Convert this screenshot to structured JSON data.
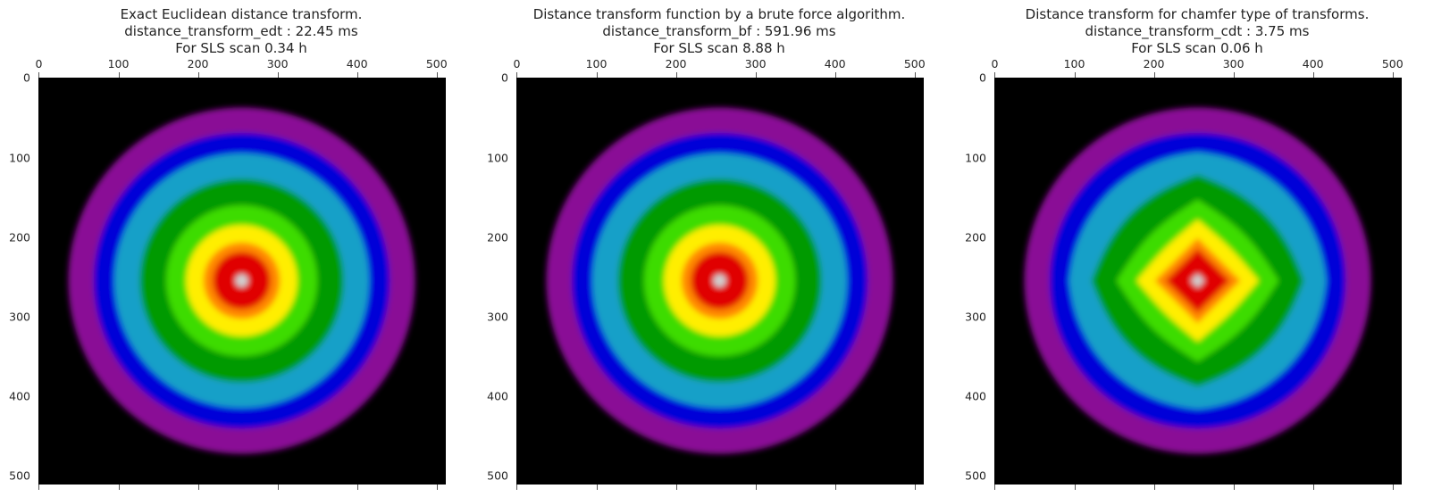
{
  "chart_data": [
    {
      "type": "heatmap",
      "title_lines": [
        "Exact Euclidean distance transform.",
        "distance_transform_edt : 22.45 ms",
        "For SLS scan 0.34 h"
      ],
      "metric": "euclidean",
      "x_ticks": [
        0,
        100,
        200,
        300,
        400,
        500
      ],
      "y_ticks": [
        0,
        100,
        200,
        300,
        400,
        500
      ],
      "xlim": [
        0,
        511
      ],
      "ylim": [
        511,
        0
      ],
      "image_size": [
        512,
        512
      ],
      "center": [
        255,
        255
      ],
      "x_axis_position": "top",
      "grid": false
    },
    {
      "type": "heatmap",
      "title_lines": [
        "Distance transform function by a brute force algorithm.",
        "distance_transform_bf : 591.96 ms",
        "For SLS scan 8.88 h"
      ],
      "metric": "euclidean",
      "x_ticks": [
        0,
        100,
        200,
        300,
        400,
        500
      ],
      "y_ticks": [
        0,
        100,
        200,
        300,
        400,
        500
      ],
      "xlim": [
        0,
        511
      ],
      "ylim": [
        511,
        0
      ],
      "image_size": [
        512,
        512
      ],
      "center": [
        255,
        255
      ],
      "x_axis_position": "top",
      "grid": false
    },
    {
      "type": "heatmap",
      "title_lines": [
        "Distance transform for chamfer type of transforms.",
        "distance_transform_cdt : 3.75 ms",
        "For SLS scan 0.06 h"
      ],
      "metric": "chamfer",
      "x_ticks": [
        0,
        100,
        200,
        300,
        400,
        500
      ],
      "y_ticks": [
        0,
        100,
        200,
        300,
        400,
        500
      ],
      "xlim": [
        0,
        511
      ],
      "ylim": [
        511,
        0
      ],
      "image_size": [
        512,
        512
      ],
      "center": [
        255,
        255
      ],
      "x_axis_position": "top",
      "grid": false
    }
  ],
  "colors": {
    "background": "#000000",
    "violet": "#8a0a96",
    "blue": "#0000d8",
    "cyan": "#12a0c8",
    "green": "#009a00",
    "lime": "#3cdc00",
    "yellow": "#ffee00",
    "orange": "#ff8800",
    "red": "#e00000",
    "center": "#d0d0d0"
  }
}
